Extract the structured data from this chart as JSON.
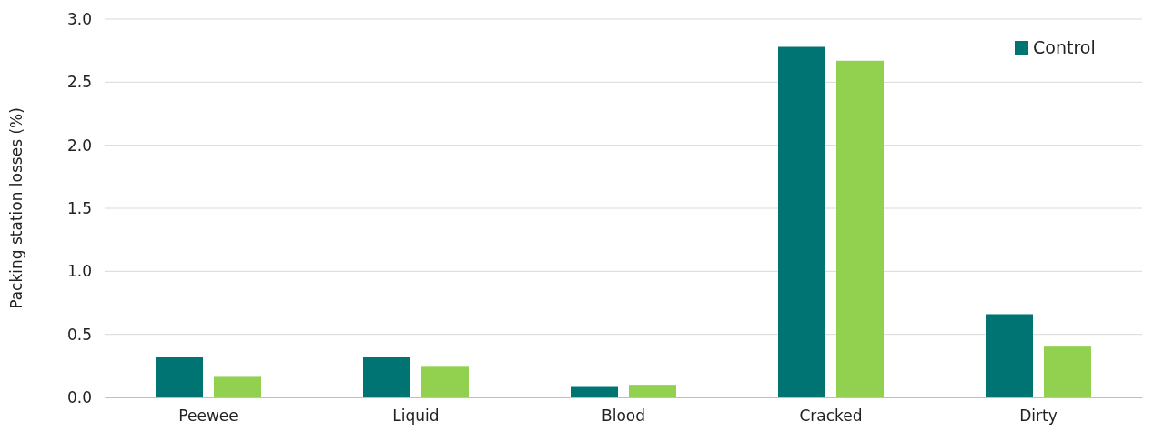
{
  "chart_data": {
    "type": "bar",
    "ylabel": "Packing station losses (%)",
    "categories": [
      "Peewee",
      "Liquid",
      "Blood",
      "Cracked",
      "Dirty"
    ],
    "series": [
      {
        "name": "Control",
        "color": "#007472",
        "values": [
          0.32,
          0.32,
          0.09,
          2.78,
          0.66
        ]
      },
      {
        "color": "#92d050",
        "values": [
          0.17,
          0.25,
          0.1,
          2.67,
          0.41
        ]
      }
    ],
    "ylim": [
      0,
      3
    ],
    "yticks": [
      {
        "value": 0,
        "label": "0.0"
      },
      {
        "value": 0.5,
        "label": "0.5"
      },
      {
        "value": 1,
        "label": "1.0"
      },
      {
        "value": 1.5,
        "label": "1.5"
      },
      {
        "value": 2,
        "label": "2.0"
      },
      {
        "value": 2.5,
        "label": "2.5"
      },
      {
        "value": 3,
        "label": "3.0"
      }
    ],
    "grid": "y",
    "legend": "top right"
  }
}
